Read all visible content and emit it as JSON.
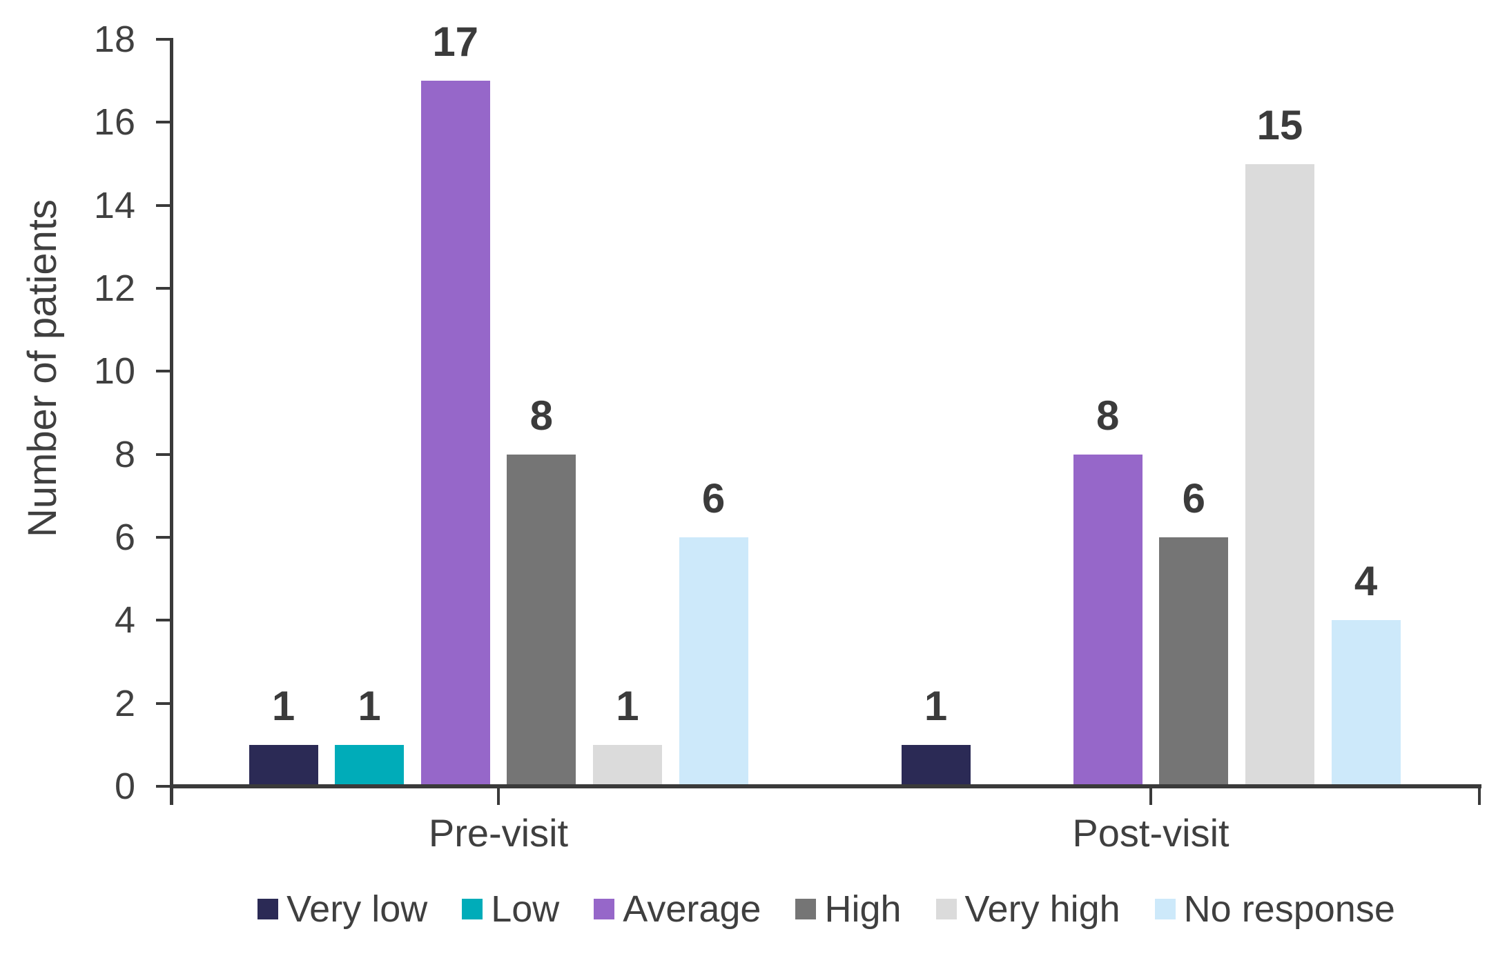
{
  "chart_data": {
    "type": "bar",
    "title": "",
    "ylabel": "Number of patients",
    "xlabel": "",
    "categories": [
      "Pre-visit",
      "Post-visit"
    ],
    "series": [
      {
        "name": "Very low",
        "color": "#2b2a55",
        "values": [
          1,
          1
        ]
      },
      {
        "name": "Low",
        "color": "#00acb9",
        "values": [
          1,
          null
        ]
      },
      {
        "name": "Average",
        "color": "#9667c9",
        "values": [
          17,
          8
        ]
      },
      {
        "name": "High",
        "color": "#757575",
        "values": [
          8,
          6
        ]
      },
      {
        "name": "Very high",
        "color": "#dbdbdb",
        "values": [
          1,
          15
        ]
      },
      {
        "name": "No response",
        "color": "#cde9fa",
        "values": [
          6,
          4
        ]
      }
    ],
    "ylim": [
      0,
      18
    ],
    "ytick_step": 2,
    "grid": false,
    "legend_position": "bottom",
    "data_labels": true,
    "axis_color": "#3a3a3a",
    "tick_label_color": "#404040",
    "data_label_color": "#3b3b3b"
  }
}
